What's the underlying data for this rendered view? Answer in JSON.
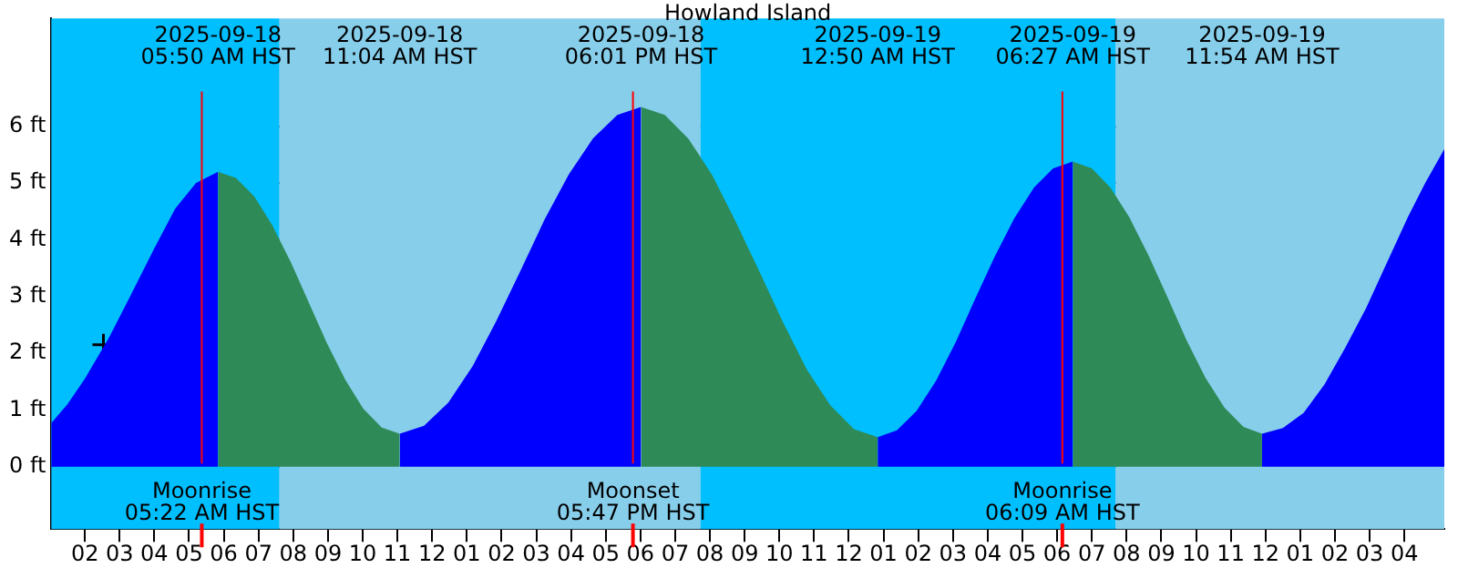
{
  "chart_data": {
    "type": "area",
    "title": "Howland Island",
    "xlim": [
      "2025-09-18T01:02",
      "2025-09-19T17:09"
    ],
    "xticks": [
      {
        "value": "2025-09-18T02:00",
        "label": "02"
      },
      {
        "value": "2025-09-18T03:00",
        "label": "03"
      },
      {
        "value": "2025-09-18T04:00",
        "label": "04"
      },
      {
        "value": "2025-09-18T05:00",
        "label": "05"
      },
      {
        "value": "2025-09-18T06:00",
        "label": "06"
      },
      {
        "value": "2025-09-18T07:00",
        "label": "07"
      },
      {
        "value": "2025-09-18T08:00",
        "label": "08"
      },
      {
        "value": "2025-09-18T09:00",
        "label": "09"
      },
      {
        "value": "2025-09-18T10:00",
        "label": "10"
      },
      {
        "value": "2025-09-18T11:00",
        "label": "11"
      },
      {
        "value": "2025-09-18T12:00",
        "label": "12"
      },
      {
        "value": "2025-09-18T13:00",
        "label": "01"
      },
      {
        "value": "2025-09-18T14:00",
        "label": "02"
      },
      {
        "value": "2025-09-18T15:00",
        "label": "03"
      },
      {
        "value": "2025-09-18T16:00",
        "label": "04"
      },
      {
        "value": "2025-09-18T17:00",
        "label": "05"
      },
      {
        "value": "2025-09-18T18:00",
        "label": "06"
      },
      {
        "value": "2025-09-18T19:00",
        "label": "07"
      },
      {
        "value": "2025-09-18T20:00",
        "label": "08"
      },
      {
        "value": "2025-09-18T21:00",
        "label": "09"
      },
      {
        "value": "2025-09-18T22:00",
        "label": "10"
      },
      {
        "value": "2025-09-18T23:00",
        "label": "11"
      },
      {
        "value": "2025-09-19T00:00",
        "label": "12"
      },
      {
        "value": "2025-09-19T01:00",
        "label": "01"
      },
      {
        "value": "2025-09-19T02:00",
        "label": "02"
      },
      {
        "value": "2025-09-19T03:00",
        "label": "03"
      },
      {
        "value": "2025-09-19T04:00",
        "label": "04"
      },
      {
        "value": "2025-09-19T05:00",
        "label": "05"
      },
      {
        "value": "2025-09-19T06:00",
        "label": "06"
      },
      {
        "value": "2025-09-19T07:00",
        "label": "07"
      },
      {
        "value": "2025-09-19T08:00",
        "label": "08"
      },
      {
        "value": "2025-09-19T09:00",
        "label": "09"
      },
      {
        "value": "2025-09-19T10:00",
        "label": "10"
      },
      {
        "value": "2025-09-19T11:00",
        "label": "11"
      },
      {
        "value": "2025-09-19T12:00",
        "label": "12"
      },
      {
        "value": "2025-09-19T13:00",
        "label": "01"
      },
      {
        "value": "2025-09-19T14:00",
        "label": "02"
      },
      {
        "value": "2025-09-19T15:00",
        "label": "03"
      },
      {
        "value": "2025-09-19T16:00",
        "label": "04"
      }
    ],
    "ylim": [
      -1.1,
      7.9
    ],
    "yticks": [
      {
        "value": 0,
        "label": "0 ft"
      },
      {
        "value": 1,
        "label": "1 ft"
      },
      {
        "value": 2,
        "label": "2 ft"
      },
      {
        "value": 3,
        "label": "3 ft"
      },
      {
        "value": 4,
        "label": "4 ft"
      },
      {
        "value": 5,
        "label": "5 ft"
      },
      {
        "value": 6,
        "label": "6 ft"
      }
    ],
    "grid": "y",
    "legend": false,
    "marker": "none",
    "series": [
      {
        "color": "#0000ff",
        "x": [
          "2025-09-18T01:02",
          "2025-09-18T01:30",
          "2025-09-18T02:00",
          "2025-09-18T02:42",
          "2025-09-18T03:18",
          "2025-09-18T04:00",
          "2025-09-18T04:36",
          "2025-09-18T05:12",
          "2025-09-18T05:50",
          "2025-09-18T08:00",
          "2025-09-18T11:04",
          "2025-09-18T11:46",
          "2025-09-18T12:28",
          "2025-09-18T13:10",
          "2025-09-18T13:51",
          "2025-09-18T14:33",
          "2025-09-18T15:14",
          "2025-09-18T15:56",
          "2025-09-18T16:38",
          "2025-09-18T17:20",
          "2025-09-18T18:01",
          "2025-09-18T21:00",
          "2025-09-19T00:50",
          "2025-09-19T01:23",
          "2025-09-19T01:57",
          "2025-09-19T02:31",
          "2025-09-19T03:05",
          "2025-09-19T03:38",
          "2025-09-19T04:12",
          "2025-09-19T04:46",
          "2025-09-19T05:20",
          "2025-09-19T05:53",
          "2025-09-19T06:27",
          "2025-09-19T09:00",
          "2025-09-19T11:54",
          "2025-09-19T12:30",
          "2025-09-19T13:06",
          "2025-09-19T13:42",
          "2025-09-19T14:18",
          "2025-09-19T14:54",
          "2025-09-19T15:30",
          "2025-09-19T16:06",
          "2025-09-19T16:36",
          "2025-09-19T17:09"
        ],
        "values": [
          0.77,
          1.1,
          1.55,
          2.28,
          3.0,
          3.85,
          4.55,
          5.0,
          5.2,
          null,
          0.58,
          0.72,
          1.13,
          1.77,
          2.57,
          3.46,
          4.35,
          5.15,
          5.79,
          6.2,
          6.34,
          null,
          0.52,
          0.64,
          0.98,
          1.52,
          2.2,
          2.95,
          3.7,
          4.38,
          4.92,
          5.26,
          5.38,
          null,
          0.58,
          0.68,
          0.95,
          1.45,
          2.1,
          2.8,
          3.6,
          4.4,
          5.0,
          5.6
        ]
      },
      {
        "color": "#2e8b57",
        "x": [
          "2025-09-18T05:50",
          "2025-09-18T06:21",
          "2025-09-18T06:53",
          "2025-09-18T07:24",
          "2025-09-18T07:56",
          "2025-09-18T08:27",
          "2025-09-18T08:58",
          "2025-09-18T09:30",
          "2025-09-18T10:01",
          "2025-09-18T10:33",
          "2025-09-18T11:04",
          "2025-09-18T15:00",
          "2025-09-18T18:01",
          "2025-09-18T18:42",
          "2025-09-18T19:23",
          "2025-09-18T20:04",
          "2025-09-18T20:44",
          "2025-09-18T21:26",
          "2025-09-18T22:07",
          "2025-09-18T22:47",
          "2025-09-18T23:28",
          "2025-09-19T00:09",
          "2025-09-19T00:50",
          "2025-09-19T04:00",
          "2025-09-19T06:27",
          "2025-09-19T07:00",
          "2025-09-19T07:32",
          "2025-09-19T08:05",
          "2025-09-19T08:38",
          "2025-09-19T09:11",
          "2025-09-19T09:43",
          "2025-09-19T10:16",
          "2025-09-19T10:49",
          "2025-09-19T11:22",
          "2025-09-19T11:54"
        ],
        "values": [
          5.2,
          5.09,
          4.76,
          4.25,
          3.6,
          2.89,
          2.18,
          1.53,
          1.02,
          0.69,
          0.58,
          null,
          6.34,
          6.2,
          5.78,
          5.14,
          4.33,
          3.43,
          2.53,
          1.72,
          1.08,
          0.66,
          0.52,
          null,
          5.38,
          5.26,
          4.92,
          4.39,
          3.72,
          2.98,
          2.24,
          1.57,
          1.04,
          0.7,
          0.58
        ]
      },
      {
        "type": "scatter",
        "marker": "cross",
        "color": "#000000",
        "x": [
          "2025-09-18T02:32"
        ],
        "values": [
          2.15
        ]
      }
    ],
    "bands": [
      {
        "axis": "x",
        "from": "2025-09-18T01:02",
        "to": "2025-09-18T07:36",
        "color": "#00bfff"
      },
      {
        "axis": "x",
        "from": "2025-09-18T07:36",
        "to": "2025-09-18T19:44",
        "color": "#87ceeb"
      },
      {
        "axis": "x",
        "from": "2025-09-18T19:44",
        "to": "2025-09-19T07:41",
        "color": "#00bfff"
      },
      {
        "axis": "x",
        "from": "2025-09-19T07:41",
        "to": "2025-09-19T17:09",
        "color": "#87ceeb"
      }
    ],
    "ref_lines": [
      {
        "axis": "x",
        "value": "2025-09-18T05:22",
        "label": "Moonrise\n05:22 AM HST",
        "color": "#ff0000"
      },
      {
        "axis": "x",
        "value": "2025-09-18T17:47",
        "label": "Moonset\n05:47 PM HST",
        "color": "#ff0000"
      },
      {
        "axis": "x",
        "value": "2025-09-19T06:09",
        "label": "Moonrise\n06:09 AM HST",
        "color": "#ff0000"
      }
    ],
    "annotations": [
      "2025-09-18\n05:50 AM HST",
      "2025-09-18\n11:04 AM HST",
      "2025-09-18\n06:01 PM HST",
      "2025-09-19\n12:50 AM HST",
      "2025-09-19\n06:27 AM HST",
      "2025-09-19\n11:54 AM HST"
    ]
  }
}
